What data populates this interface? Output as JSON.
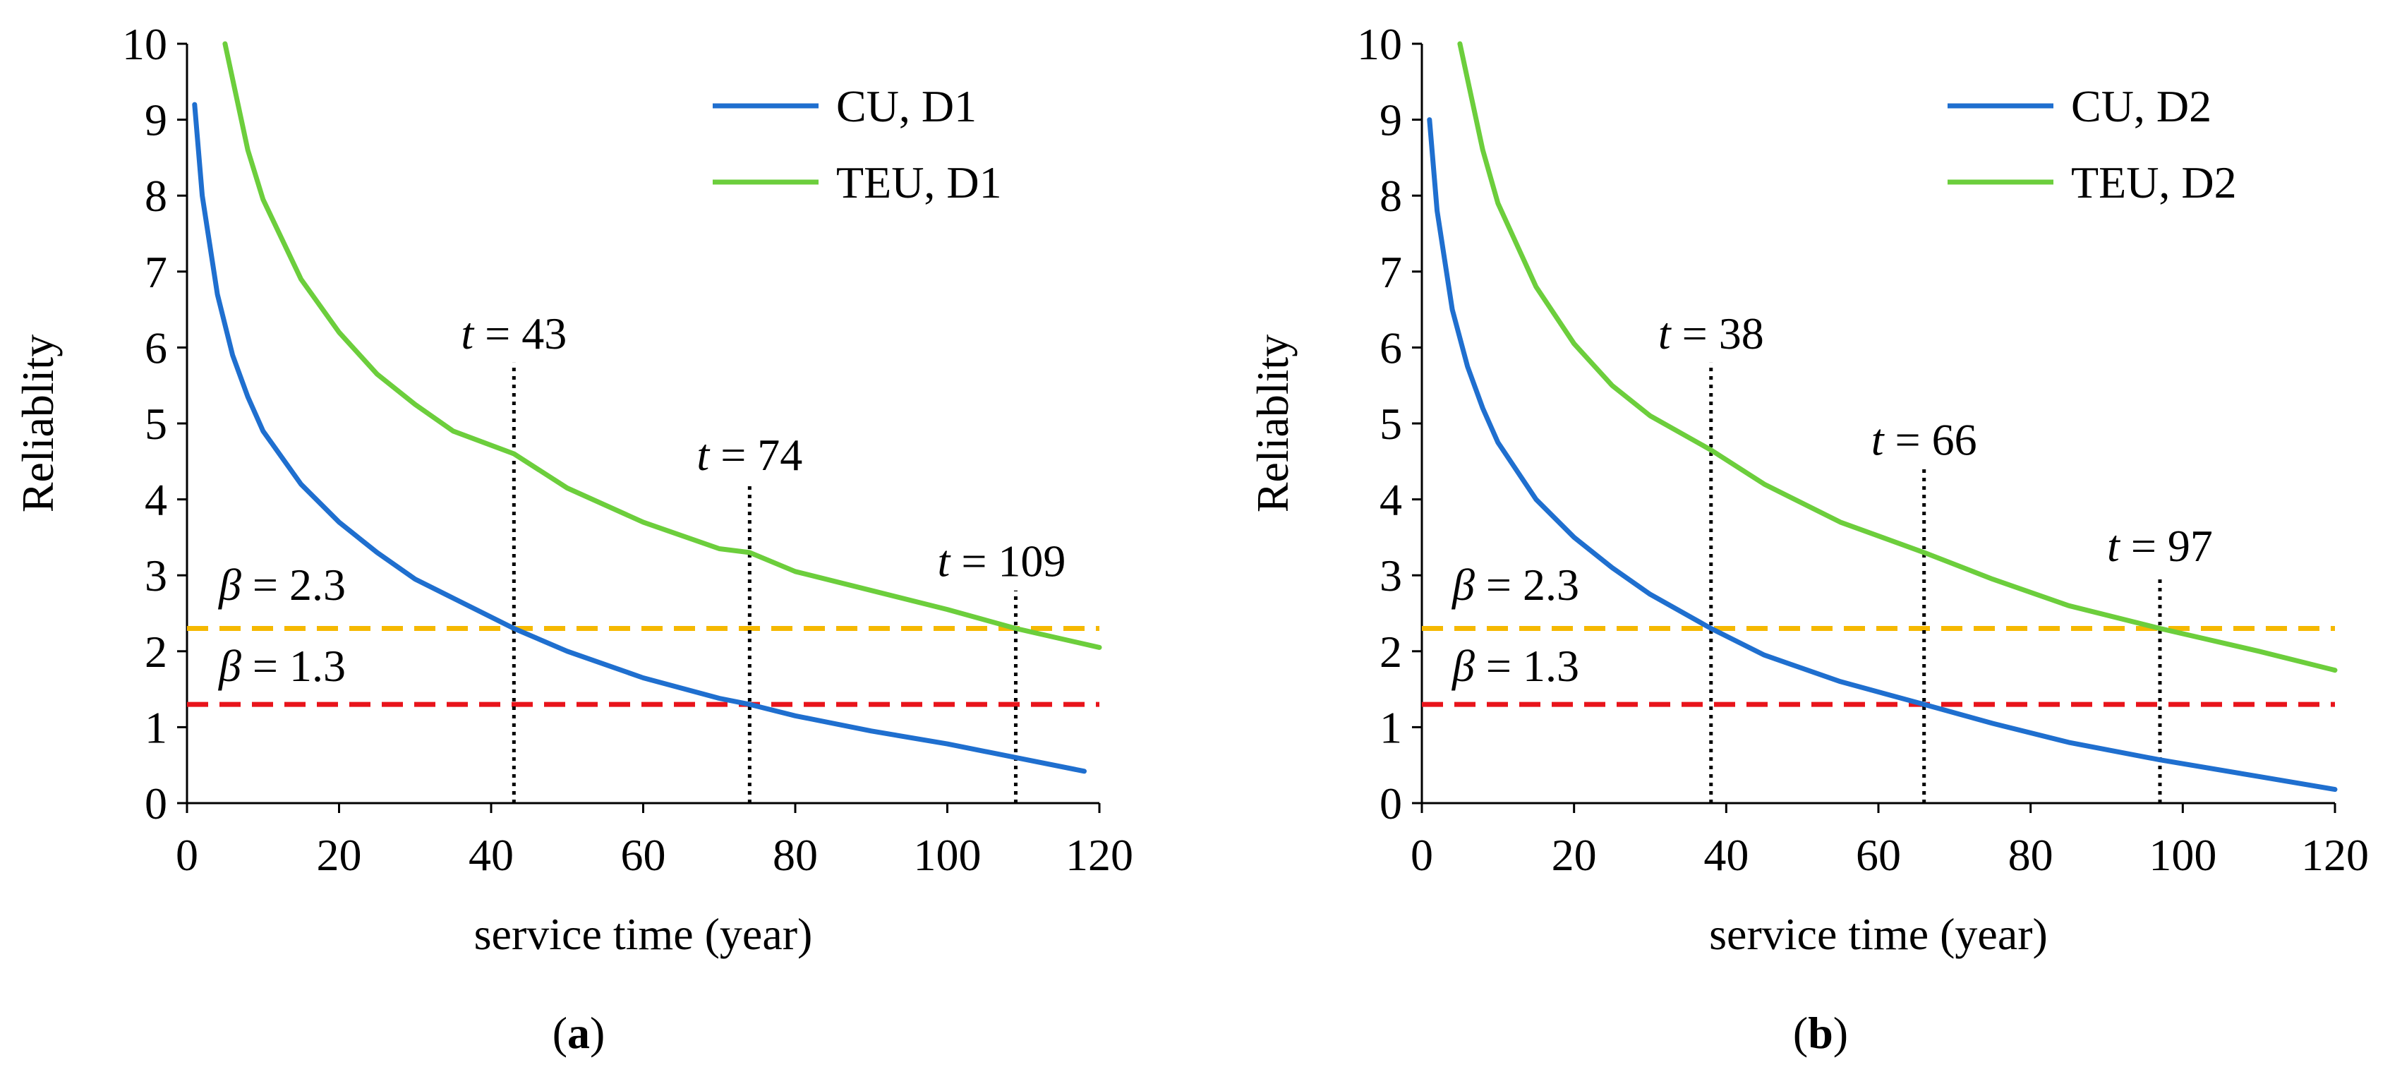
{
  "chart_data": [
    {
      "type": "line",
      "panel_label": "a",
      "xlabel": "service time (year)",
      "ylabel": "Reliablity",
      "xlim": [
        0,
        120
      ],
      "ylim": [
        0,
        10
      ],
      "xticks": [
        0,
        20,
        40,
        60,
        80,
        100,
        120
      ],
      "yticks": [
        0,
        1,
        2,
        3,
        4,
        5,
        6,
        7,
        8,
        9,
        10
      ],
      "grid": false,
      "legend_position": "top-right",
      "series": [
        {
          "name": "CU, D1",
          "color": "#1f6fcf",
          "points": [
            [
              1,
              9.2
            ],
            [
              2,
              8.0
            ],
            [
              4,
              6.7
            ],
            [
              6,
              5.9
            ],
            [
              8,
              5.35
            ],
            [
              10,
              4.9
            ],
            [
              15,
              4.2
            ],
            [
              20,
              3.7
            ],
            [
              25,
              3.3
            ],
            [
              30,
              2.95
            ],
            [
              35,
              2.7
            ],
            [
              40,
              2.45
            ],
            [
              43,
              2.3
            ],
            [
              50,
              2.0
            ],
            [
              60,
              1.65
            ],
            [
              70,
              1.38
            ],
            [
              74,
              1.3
            ],
            [
              80,
              1.15
            ],
            [
              90,
              0.95
            ],
            [
              100,
              0.78
            ],
            [
              109,
              0.6
            ],
            [
              118,
              0.42
            ]
          ]
        },
        {
          "name": "TEU, D1",
          "color": "#6cce3c",
          "points": [
            [
              5,
              10.0
            ],
            [
              8,
              8.6
            ],
            [
              10,
              7.95
            ],
            [
              15,
              6.9
            ],
            [
              20,
              6.2
            ],
            [
              25,
              5.65
            ],
            [
              30,
              5.25
            ],
            [
              35,
              4.9
            ],
            [
              43,
              4.6
            ],
            [
              50,
              4.15
            ],
            [
              60,
              3.7
            ],
            [
              70,
              3.35
            ],
            [
              74,
              3.3
            ],
            [
              80,
              3.05
            ],
            [
              90,
              2.8
            ],
            [
              100,
              2.55
            ],
            [
              109,
              2.3
            ],
            [
              120,
              2.05
            ]
          ]
        }
      ],
      "reference_lines": [
        {
          "label": "β = 2.3",
          "symbol": "β",
          "value_text": " = 2.3",
          "y": 2.3,
          "color": "#f5b800"
        },
        {
          "label": "β = 1.3",
          "symbol": "β",
          "value_text": " = 1.3",
          "y": 1.3,
          "color": "#e8141b"
        }
      ],
      "markers": [
        {
          "label": "t = 43",
          "symbol": "t",
          "value_text": " = 43",
          "x": 43,
          "y_top": 5.8
        },
        {
          "label": "t = 74",
          "symbol": "t",
          "value_text": " = 74",
          "x": 74,
          "y_top": 4.2
        },
        {
          "label": "t = 109",
          "symbol": "t",
          "value_text": " = 109",
          "x": 109,
          "y_top": 2.8
        }
      ]
    },
    {
      "type": "line",
      "panel_label": "b",
      "xlabel": "service time (year)",
      "ylabel": "Reliablity",
      "xlim": [
        0,
        120
      ],
      "ylim": [
        0,
        10
      ],
      "xticks": [
        0,
        20,
        40,
        60,
        80,
        100,
        120
      ],
      "yticks": [
        0,
        1,
        2,
        3,
        4,
        5,
        6,
        7,
        8,
        9,
        10
      ],
      "grid": false,
      "legend_position": "top-right",
      "series": [
        {
          "name": "CU, D2",
          "color": "#1f6fcf",
          "points": [
            [
              1,
              9.0
            ],
            [
              2,
              7.8
            ],
            [
              4,
              6.5
            ],
            [
              6,
              5.75
            ],
            [
              8,
              5.2
            ],
            [
              10,
              4.75
            ],
            [
              15,
              4.0
            ],
            [
              20,
              3.5
            ],
            [
              25,
              3.1
            ],
            [
              30,
              2.75
            ],
            [
              38,
              2.3
            ],
            [
              45,
              1.95
            ],
            [
              55,
              1.6
            ],
            [
              66,
              1.3
            ],
            [
              75,
              1.05
            ],
            [
              85,
              0.8
            ],
            [
              97,
              0.57
            ],
            [
              110,
              0.35
            ],
            [
              120,
              0.18
            ]
          ]
        },
        {
          "name": "TEU, D2",
          "color": "#6cce3c",
          "points": [
            [
              5,
              10.0
            ],
            [
              8,
              8.6
            ],
            [
              10,
              7.9
            ],
            [
              15,
              6.8
            ],
            [
              20,
              6.05
            ],
            [
              25,
              5.5
            ],
            [
              30,
              5.1
            ],
            [
              38,
              4.65
            ],
            [
              45,
              4.2
            ],
            [
              55,
              3.7
            ],
            [
              66,
              3.3
            ],
            [
              75,
              2.95
            ],
            [
              85,
              2.6
            ],
            [
              97,
              2.3
            ],
            [
              110,
              2.0
            ],
            [
              120,
              1.75
            ]
          ]
        }
      ],
      "reference_lines": [
        {
          "label": "β = 2.3",
          "symbol": "β",
          "value_text": " = 2.3",
          "y": 2.3,
          "color": "#f5b800"
        },
        {
          "label": "β = 1.3",
          "symbol": "β",
          "value_text": " = 1.3",
          "y": 1.3,
          "color": "#e8141b"
        }
      ],
      "markers": [
        {
          "label": "t = 38",
          "symbol": "t",
          "value_text": " = 38",
          "x": 38,
          "y_top": 5.8
        },
        {
          "label": "t = 66",
          "symbol": "t",
          "value_text": " = 66",
          "x": 66,
          "y_top": 4.4
        },
        {
          "label": "t = 97",
          "symbol": "t",
          "value_text": " = 97",
          "x": 97,
          "y_top": 3.0
        }
      ]
    }
  ]
}
